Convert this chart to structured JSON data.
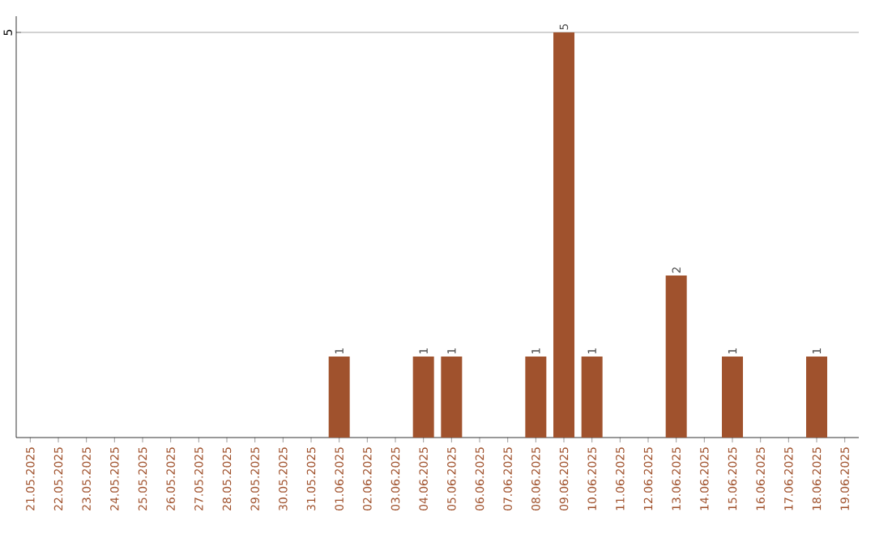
{
  "chart_data": {
    "type": "bar",
    "categories": [
      "21.05.2025",
      "22.05.2025",
      "23.05.2025",
      "24.05.2025",
      "25.05.2025",
      "26.05.2025",
      "27.05.2025",
      "28.05.2025",
      "29.05.2025",
      "30.05.2025",
      "31.05.2025",
      "01.06.2025",
      "02.06.2025",
      "03.06.2025",
      "04.06.2025",
      "05.06.2025",
      "06.06.2025",
      "07.06.2025",
      "08.06.2025",
      "09.06.2025",
      "10.06.2025",
      "11.06.2025",
      "12.06.2025",
      "13.06.2025",
      "14.06.2025",
      "15.06.2025",
      "16.06.2025",
      "17.06.2025",
      "18.06.2025",
      "19.06.2025"
    ],
    "values": [
      0,
      0,
      0,
      0,
      0,
      0,
      0,
      0,
      0,
      0,
      0,
      1,
      0,
      0,
      1,
      1,
      0,
      0,
      1,
      5,
      1,
      0,
      0,
      2,
      0,
      1,
      0,
      0,
      1,
      0
    ],
    "value_labels": [
      null,
      null,
      null,
      null,
      null,
      null,
      null,
      null,
      null,
      null,
      null,
      "1",
      null,
      null,
      "1",
      "1",
      null,
      null,
      "1",
      "5",
      "1",
      null,
      null,
      "2",
      null,
      "1",
      null,
      null,
      "1",
      null
    ],
    "color": "#a0522d",
    "ylim": [
      0,
      5.2
    ],
    "yticks": [
      5
    ],
    "grid": "y"
  }
}
